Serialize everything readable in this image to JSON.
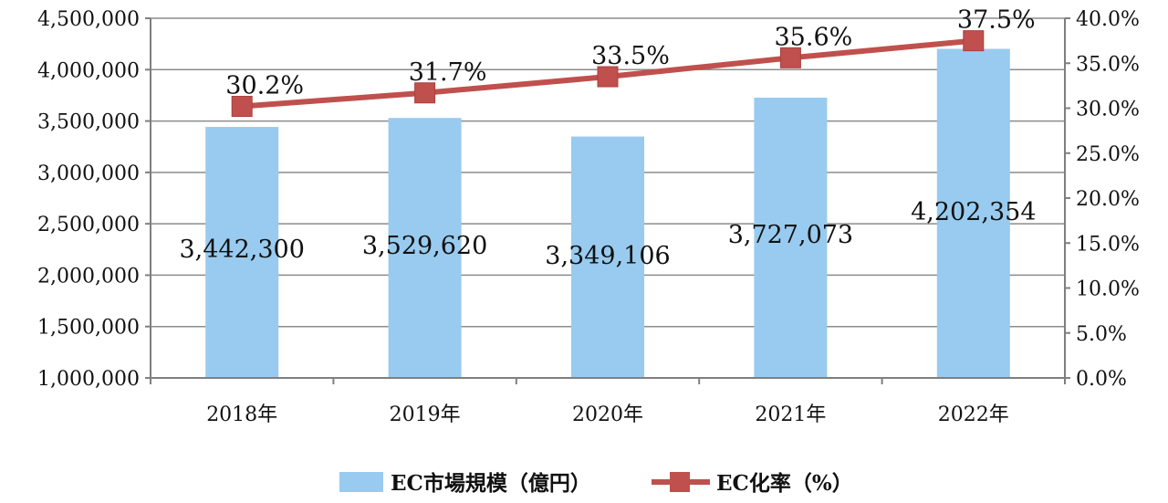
{
  "chart_data": {
    "type": "bar",
    "categories": [
      "2018年",
      "2019年",
      "2020年",
      "2021年",
      "2022年"
    ],
    "series": [
      {
        "name": "EC市場規模（億円）",
        "type": "bar",
        "axis": "left",
        "values": [
          3442300,
          3529620,
          3349106,
          3727073,
          4202354
        ],
        "labels": [
          "3,442,300",
          "3,529,620",
          "3,349,106",
          "3,727,073",
          "4,202,354"
        ],
        "color": "#98CBEF"
      },
      {
        "name": "EC化率（%）",
        "type": "line",
        "axis": "right",
        "values": [
          30.2,
          31.7,
          33.5,
          35.6,
          37.5
        ],
        "labels": [
          "30.2%",
          "31.7%",
          "33.5%",
          "35.6%",
          "37.5%"
        ],
        "color": "#C0504D"
      }
    ],
    "y_left": {
      "ylim": [
        1000000,
        4500000
      ],
      "ticks": [
        1000000,
        1500000,
        2000000,
        2500000,
        3000000,
        3500000,
        4000000,
        4500000
      ],
      "tick_labels": [
        "1,000,000",
        "1,500,000",
        "2,000,000",
        "2,500,000",
        "3,000,000",
        "3,500,000",
        "4,000,000",
        "4,500,000"
      ]
    },
    "y_right": {
      "ylim": [
        0,
        40
      ],
      "ticks": [
        0,
        5,
        10,
        15,
        20,
        25,
        30,
        35,
        40
      ],
      "tick_labels": [
        "0.0%",
        "5.0%",
        "10.0%",
        "15.0%",
        "20.0%",
        "25.0%",
        "30.0%",
        "35.0%",
        "40.0%"
      ]
    },
    "grid": true,
    "legend_position": "bottom",
    "title": "",
    "xlabel": "",
    "ylabel": ""
  }
}
